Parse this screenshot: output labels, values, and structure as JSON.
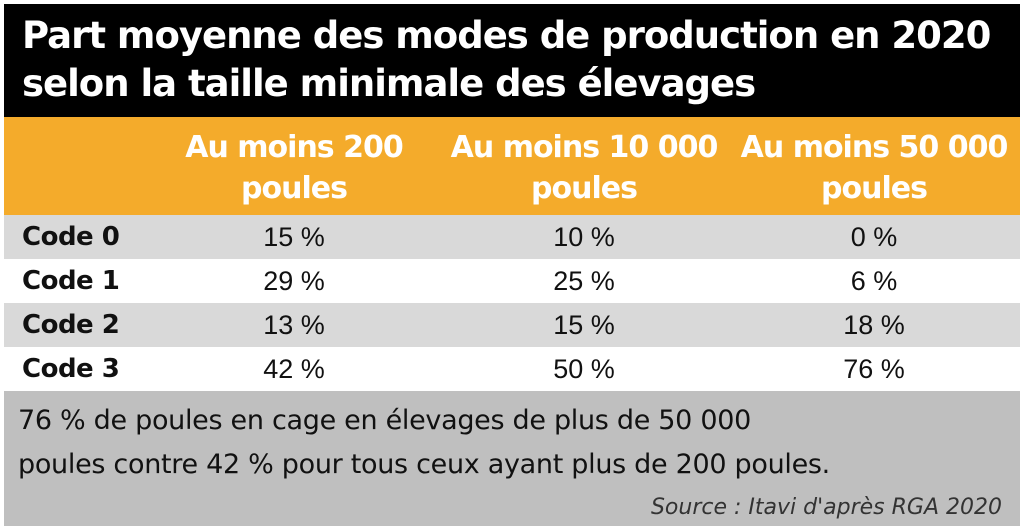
{
  "title": {
    "line1": "Part moyenne des modes de production en 2020",
    "line2": "selon la taille minimale des élevages"
  },
  "colors": {
    "title_bg": "#000000",
    "header_bg": "#f4ab2b",
    "row_shade": "#d9d9d9",
    "footer_bg": "#bfbfbf"
  },
  "table": {
    "columns": [
      {
        "line1": "Au moins 200",
        "line2": "poules"
      },
      {
        "line1": "Au moins 10 000",
        "line2": "poules"
      },
      {
        "line1": "Au moins 50 000",
        "line2": "poules"
      }
    ],
    "rows": [
      {
        "label": "Code 0",
        "values": [
          "15 %",
          "10 %",
          "0 %"
        ]
      },
      {
        "label": "Code 1",
        "values": [
          "29 %",
          "25 %",
          "6 %"
        ]
      },
      {
        "label": "Code 2",
        "values": [
          "13 %",
          "15 %",
          "18 %"
        ]
      },
      {
        "label": "Code 3",
        "values": [
          "42 %",
          "50 %",
          "76 %"
        ]
      }
    ]
  },
  "footer": {
    "note_line1": "76 % de poules en cage en élevages de plus de 50 000",
    "note_line2": "poules contre 42 % pour tous ceux ayant plus de 200 poules.",
    "source": "Source : Itavi d'après RGA 2020"
  }
}
